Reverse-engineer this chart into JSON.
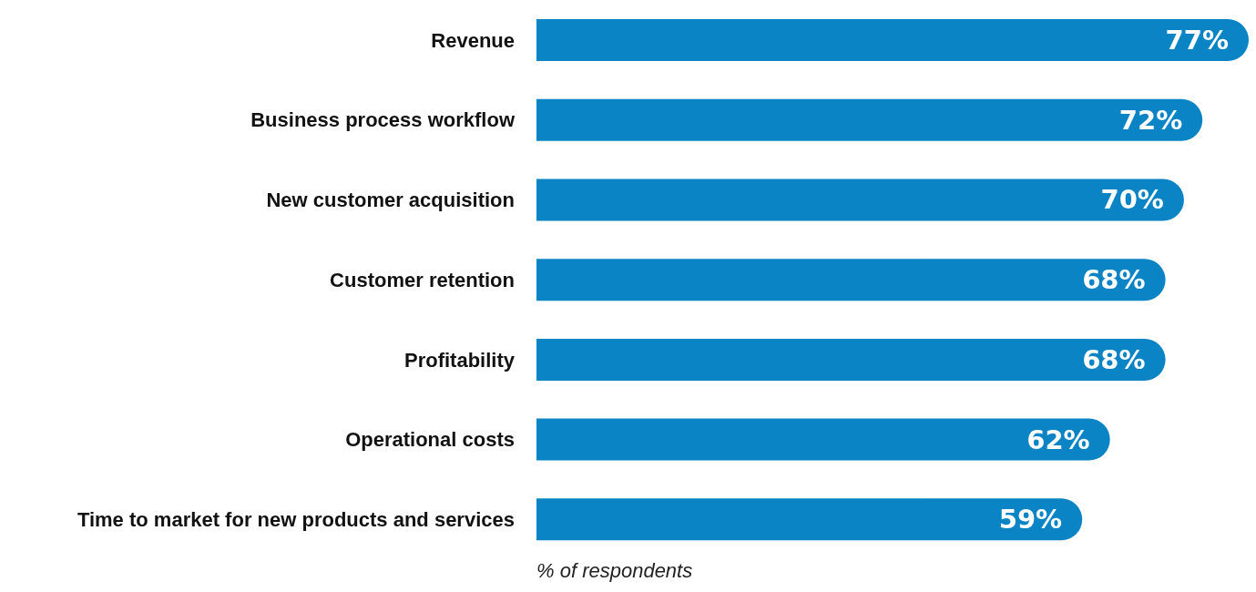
{
  "chart_data": {
    "type": "bar",
    "orientation": "horizontal",
    "xlabel": "% of respondents",
    "categories": [
      "Revenue",
      "Business process workflow",
      "New customer acquisition",
      "Customer retention",
      "Profitability",
      "Operational costs",
      "Time to market for new products and services"
    ],
    "values": [
      77,
      72,
      70,
      68,
      68,
      62,
      59
    ],
    "value_labels": [
      "77%",
      "72%",
      "70%",
      "68%",
      "68%",
      "62%",
      "59%"
    ],
    "color": "#0a84c4",
    "grid": false,
    "legend": false
  }
}
